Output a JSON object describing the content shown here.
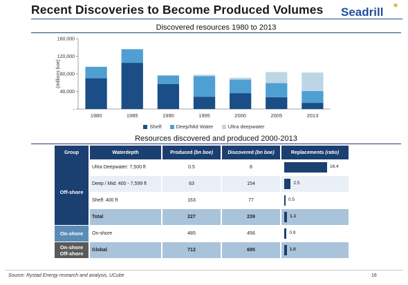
{
  "title": "Recent Discoveries to Become Produced Volumes",
  "logo": "Seadrill",
  "chart_data": {
    "type": "bar",
    "stacked": true,
    "title": "Discovered resources 1980 to 2013",
    "ylabel": "(millions boe)",
    "xlabel": "",
    "ylim": [
      0,
      160000
    ],
    "yticks": [
      "-",
      "40,000",
      "80,000",
      "120,000",
      "160,000"
    ],
    "categories": [
      "1980",
      "1985",
      "1990",
      "1995",
      "2000",
      "2005",
      "2013"
    ],
    "series": [
      {
        "name": "Shelf",
        "color": "#1b4e86",
        "values": [
          70000,
          105000,
          57000,
          28000,
          36000,
          27000,
          14000
        ]
      },
      {
        "name": "Deep/Mid Water",
        "color": "#4f9fd3",
        "values": [
          26000,
          31000,
          19000,
          47000,
          31000,
          32000,
          27000
        ]
      },
      {
        "name": "Ultra deepwater",
        "color": "#bcd6e5",
        "values": [
          0,
          0,
          1000,
          3000,
          4000,
          25000,
          42000
        ]
      }
    ],
    "legend_position": "bottom",
    "grid": false
  },
  "table": {
    "title": "Resources discovered and produced 2000-2013",
    "headers": {
      "group": "Group",
      "waterdepth": "Waterdepth",
      "produced": "Produced",
      "produced_unit": "(bn boe)",
      "discovered": "Discovered",
      "discovered_unit": "(bn boe)",
      "replacements": "Replacements",
      "replacements_unit": "(ratio)"
    },
    "groups": {
      "offshore": "Off-shore",
      "onshore": "On-shore",
      "combined_1": "On-shore",
      "combined_2": "Off-shore"
    },
    "rows": [
      {
        "waterdepth": "Ultra Deepwater: 7,500 ft",
        "produced": "0.5",
        "discovered": "8",
        "ratio": 16.4,
        "ratio_label": "16.4"
      },
      {
        "waterdepth": "Deep / Mid: 400 - 7,599 ft",
        "produced": "63",
        "discovered": "154",
        "ratio": 2.5,
        "ratio_label": "2.5"
      },
      {
        "waterdepth": "Shelf: 400 ft",
        "produced": "163",
        "discovered": "77",
        "ratio": 0.5,
        "ratio_label": "0.5"
      },
      {
        "waterdepth": "Total",
        "produced": "227",
        "discovered": "239",
        "ratio": 1.1,
        "ratio_label": "1.1"
      },
      {
        "waterdepth": "On-shore",
        "produced": "485",
        "discovered": "456",
        "ratio": 0.9,
        "ratio_label": "0.9"
      },
      {
        "waterdepth": "Global",
        "produced": "712",
        "discovered": "695",
        "ratio": 1.0,
        "ratio_label": "1.0"
      }
    ],
    "ratio_max": 16.4
  },
  "footer": {
    "source": "Source: Rystad Energy research and analysis, UCube",
    "page": "16"
  }
}
